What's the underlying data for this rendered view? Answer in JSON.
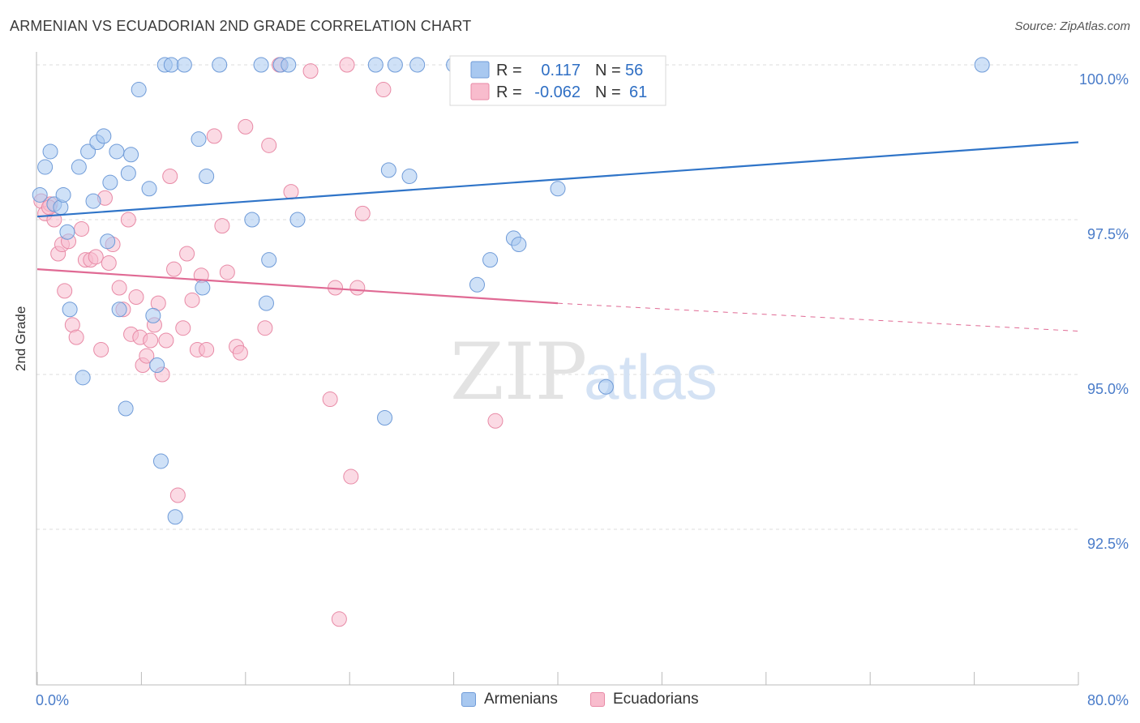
{
  "header": {
    "title": "ARMENIAN VS ECUADORIAN 2ND GRADE CORRELATION CHART",
    "source": "Source: ZipAtlas.com"
  },
  "watermark": {
    "zip": "ZIP",
    "atlas": "atlas"
  },
  "stats": {
    "armenians": {
      "r_label": "R =",
      "r_value": "0.117",
      "n_label": "N =",
      "n_value": "56"
    },
    "ecuadorians": {
      "r_label": "R =",
      "r_value": "-0.062",
      "n_label": "N =",
      "n_value": "61"
    }
  },
  "legend": {
    "armenians": "Armenians",
    "ecuadorians": "Ecuadorians"
  },
  "colors": {
    "armenians_fill": "#a8c8f0",
    "armenians_stroke": "#6f9bd8",
    "armenians_line": "#2f74c8",
    "ecuadorians_fill": "#f8bccd",
    "ecuadorians_stroke": "#e88aa6",
    "ecuadorians_line": "#e06a94",
    "tick_label": "#4a7cc9",
    "grid": "#dddddd"
  },
  "chart_data": {
    "type": "scatter",
    "title": "ARMENIAN VS ECUADORIAN 2ND GRADE CORRELATION CHART",
    "xlabel": "",
    "ylabel": "2nd Grade",
    "xlim": [
      0,
      80
    ],
    "ylim": [
      90.0,
      100.35
    ],
    "x_tick_labels": [
      "0.0%",
      "80.0%"
    ],
    "y_ticks": [
      92.5,
      95.0,
      97.5,
      100.0
    ],
    "y_tick_labels": [
      "92.5%",
      "95.0%",
      "97.5%",
      "100.0%"
    ],
    "grid": true,
    "legend_position": "bottom",
    "series": [
      {
        "name": "Armenians",
        "r": 0.117,
        "n": 56,
        "trend": {
          "x": [
            0,
            80
          ],
          "y": [
            97.55,
            98.75
          ]
        },
        "points": [
          [
            0.2,
            97.9
          ],
          [
            0.6,
            98.35
          ],
          [
            1.0,
            98.6
          ],
          [
            1.3,
            97.75
          ],
          [
            1.8,
            97.7
          ],
          [
            2.0,
            97.9
          ],
          [
            2.3,
            97.3
          ],
          [
            2.5,
            96.05
          ],
          [
            3.2,
            98.35
          ],
          [
            3.5,
            94.95
          ],
          [
            3.9,
            98.6
          ],
          [
            4.3,
            97.8
          ],
          [
            4.6,
            98.75
          ],
          [
            5.1,
            98.85
          ],
          [
            5.4,
            97.15
          ],
          [
            5.6,
            98.1
          ],
          [
            6.1,
            98.6
          ],
          [
            6.3,
            96.05
          ],
          [
            6.8,
            94.45
          ],
          [
            7.0,
            98.25
          ],
          [
            7.2,
            98.55
          ],
          [
            7.8,
            99.6
          ],
          [
            8.6,
            98.0
          ],
          [
            8.9,
            95.95
          ],
          [
            9.2,
            95.15
          ],
          [
            9.5,
            93.6
          ],
          [
            9.8,
            100.0
          ],
          [
            10.3,
            100.0
          ],
          [
            10.6,
            92.7
          ],
          [
            11.3,
            100.0
          ],
          [
            12.4,
            98.8
          ],
          [
            12.7,
            96.4
          ],
          [
            13.0,
            98.2
          ],
          [
            14.0,
            100.0
          ],
          [
            16.5,
            97.5
          ],
          [
            17.2,
            100.0
          ],
          [
            17.6,
            96.15
          ],
          [
            17.8,
            96.85
          ],
          [
            18.7,
            100.0
          ],
          [
            19.3,
            100.0
          ],
          [
            20.0,
            97.5
          ],
          [
            26.0,
            100.0
          ],
          [
            26.7,
            94.3
          ],
          [
            27.0,
            98.3
          ],
          [
            27.5,
            100.0
          ],
          [
            28.6,
            98.2
          ],
          [
            29.2,
            100.0
          ],
          [
            32.0,
            100.0
          ],
          [
            33.8,
            96.45
          ],
          [
            34.8,
            96.85
          ],
          [
            36.6,
            97.2
          ],
          [
            37.0,
            97.1
          ],
          [
            37.5,
            99.6
          ],
          [
            40.0,
            98.0
          ],
          [
            43.7,
            94.8
          ],
          [
            72.6,
            100.0
          ]
        ]
      },
      {
        "name": "Ecuadorians",
        "r": -0.062,
        "n": 61,
        "trend": {
          "x": [
            0,
            40
          ],
          "y": [
            96.7,
            96.15
          ]
        },
        "trend_dashed": {
          "x": [
            40,
            80
          ],
          "y": [
            96.15,
            95.7
          ]
        },
        "points": [
          [
            0.3,
            97.8
          ],
          [
            0.6,
            97.6
          ],
          [
            1.0,
            97.75
          ],
          [
            1.3,
            97.5
          ],
          [
            1.6,
            96.95
          ],
          [
            1.9,
            97.1
          ],
          [
            2.1,
            96.35
          ],
          [
            2.4,
            97.15
          ],
          [
            2.7,
            95.8
          ],
          [
            3.0,
            95.6
          ],
          [
            3.4,
            97.35
          ],
          [
            3.7,
            96.85
          ],
          [
            4.1,
            96.85
          ],
          [
            4.5,
            96.9
          ],
          [
            4.9,
            95.4
          ],
          [
            5.2,
            97.85
          ],
          [
            5.5,
            96.8
          ],
          [
            5.8,
            97.1
          ],
          [
            6.3,
            96.4
          ],
          [
            6.6,
            96.05
          ],
          [
            7.0,
            97.5
          ],
          [
            7.2,
            95.65
          ],
          [
            7.6,
            96.25
          ],
          [
            7.9,
            95.6
          ],
          [
            8.1,
            95.15
          ],
          [
            8.4,
            95.3
          ],
          [
            8.7,
            95.55
          ],
          [
            9.0,
            95.8
          ],
          [
            9.3,
            96.15
          ],
          [
            9.6,
            95.0
          ],
          [
            9.9,
            95.55
          ],
          [
            10.2,
            98.2
          ],
          [
            10.5,
            96.7
          ],
          [
            10.8,
            93.05
          ],
          [
            11.2,
            95.75
          ],
          [
            11.5,
            96.95
          ],
          [
            11.9,
            96.2
          ],
          [
            12.3,
            95.4
          ],
          [
            12.6,
            96.6
          ],
          [
            13.0,
            95.4
          ],
          [
            13.6,
            98.85
          ],
          [
            14.2,
            97.4
          ],
          [
            14.6,
            96.65
          ],
          [
            15.3,
            95.45
          ],
          [
            15.6,
            95.35
          ],
          [
            16.0,
            99.0
          ],
          [
            17.5,
            95.75
          ],
          [
            17.8,
            98.7
          ],
          [
            18.6,
            100.0
          ],
          [
            19.5,
            97.95
          ],
          [
            21.0,
            99.9
          ],
          [
            22.5,
            94.6
          ],
          [
            22.9,
            96.4
          ],
          [
            23.2,
            91.05
          ],
          [
            23.8,
            100.0
          ],
          [
            24.1,
            93.35
          ],
          [
            24.6,
            96.4
          ],
          [
            25.0,
            97.6
          ],
          [
            26.6,
            99.6
          ],
          [
            35.2,
            94.25
          ],
          [
            0.9,
            97.7
          ]
        ]
      }
    ]
  }
}
